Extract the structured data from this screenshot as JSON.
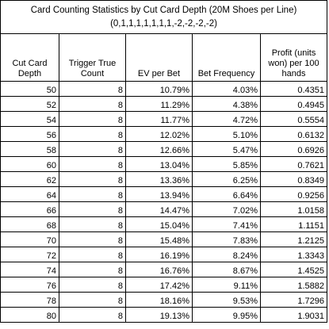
{
  "title": {
    "line1": "Card Counting Statistics by Cut Card Depth (20M Shoes per Line)",
    "line2": "(0,1,1,1,1,1,1,1,-2,-2,-2,-2)"
  },
  "headers": {
    "depth": "Cut Card Depth",
    "trigger": "Trigger True Count",
    "ev": "EV per Bet",
    "freq": "Bet Frequency",
    "profit": "Profit (units won) per 100 hands"
  },
  "rows": [
    {
      "depth": "50",
      "trigger": "8",
      "ev": "10.79%",
      "freq": "4.03%",
      "profit": "0.4351"
    },
    {
      "depth": "52",
      "trigger": "8",
      "ev": "11.29%",
      "freq": "4.38%",
      "profit": "0.4945"
    },
    {
      "depth": "54",
      "trigger": "8",
      "ev": "11.77%",
      "freq": "4.72%",
      "profit": "0.5554"
    },
    {
      "depth": "56",
      "trigger": "8",
      "ev": "12.02%",
      "freq": "5.10%",
      "profit": "0.6132"
    },
    {
      "depth": "58",
      "trigger": "8",
      "ev": "12.66%",
      "freq": "5.47%",
      "profit": "0.6926"
    },
    {
      "depth": "60",
      "trigger": "8",
      "ev": "13.04%",
      "freq": "5.85%",
      "profit": "0.7621"
    },
    {
      "depth": "62",
      "trigger": "8",
      "ev": "13.36%",
      "freq": "6.25%",
      "profit": "0.8349"
    },
    {
      "depth": "64",
      "trigger": "8",
      "ev": "13.94%",
      "freq": "6.64%",
      "profit": "0.9256"
    },
    {
      "depth": "66",
      "trigger": "8",
      "ev": "14.47%",
      "freq": "7.02%",
      "profit": "1.0158"
    },
    {
      "depth": "68",
      "trigger": "8",
      "ev": "15.04%",
      "freq": "7.41%",
      "profit": "1.1151"
    },
    {
      "depth": "70",
      "trigger": "8",
      "ev": "15.48%",
      "freq": "7.83%",
      "profit": "1.2125"
    },
    {
      "depth": "72",
      "trigger": "8",
      "ev": "16.19%",
      "freq": "8.24%",
      "profit": "1.3343"
    },
    {
      "depth": "74",
      "trigger": "8",
      "ev": "16.76%",
      "freq": "8.67%",
      "profit": "1.4525"
    },
    {
      "depth": "76",
      "trigger": "8",
      "ev": "17.42%",
      "freq": "9.11%",
      "profit": "1.5882"
    },
    {
      "depth": "78",
      "trigger": "8",
      "ev": "18.16%",
      "freq": "9.53%",
      "profit": "1.7296"
    },
    {
      "depth": "80",
      "trigger": "8",
      "ev": "19.13%",
      "freq": "9.95%",
      "profit": "1.9031"
    }
  ]
}
